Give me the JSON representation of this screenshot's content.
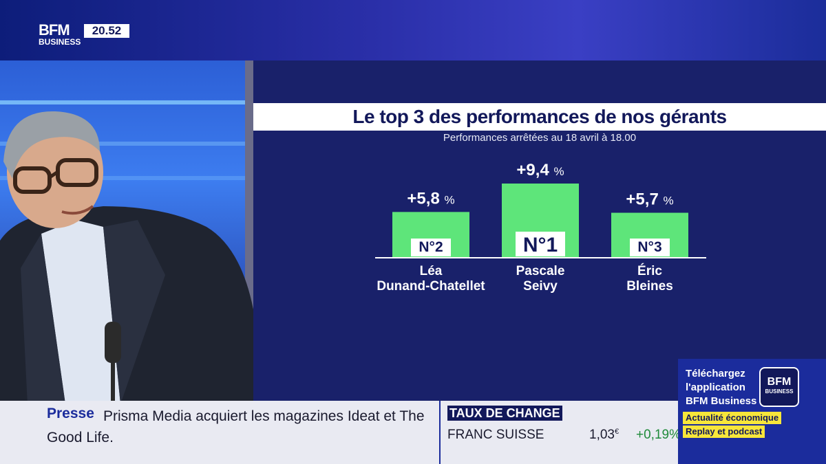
{
  "logo": {
    "brand": "BFM",
    "sub": "BUSINESS"
  },
  "clock": "20.52",
  "colors": {
    "bar": "#5ee57a",
    "panel": "#19216a",
    "brand_blue": "#1b2c9c",
    "positive": "#1f8a3a",
    "highlight": "#f7e63a"
  },
  "chart_data": {
    "type": "bar",
    "title": "Le top 3 des performances de nos gérants",
    "subtitle": "Performances arrêtées au 18 avril à 18.00",
    "categories": [
      "Léa Dunand-Chatellet",
      "Pascale Seivy",
      "Éric Bleines"
    ],
    "category_lines": [
      [
        "Léa",
        "Dunand-Chatellet"
      ],
      [
        "Pascale",
        "Seivy"
      ],
      [
        "Éric",
        "Bleines"
      ]
    ],
    "values": [
      5.8,
      9.4,
      5.7
    ],
    "value_labels": [
      "+5,8",
      "+9,4",
      "+5,7"
    ],
    "unit": "%",
    "ranks": [
      "N°2",
      "N°1",
      "N°3"
    ]
  },
  "ticker": {
    "tag": "Presse",
    "headline": "Prisma Media acquiert les magazines Ideat et The Good Life."
  },
  "fx": {
    "label": "TAUX DE CHANGE",
    "name": "FRANC SUISSE",
    "value": "1,03",
    "currency": "€",
    "change": "+0,19%"
  },
  "promo": {
    "line1": "Téléchargez",
    "line2": "l'application",
    "line3": "BFM Business",
    "tag1": "Actualité économique",
    "tag2": "Replay et podcast",
    "logo_brand": "BFM",
    "logo_sub": "BUSINESS"
  }
}
